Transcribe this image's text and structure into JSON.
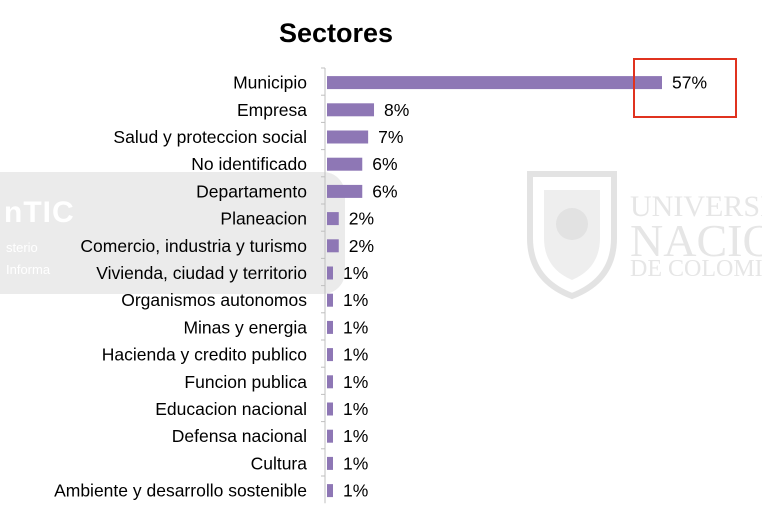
{
  "colors": {
    "bar": "#8e77b5",
    "axis": "#bfbfbf",
    "highlight": "#e0321f",
    "watermark_left": "#ebebeb",
    "watermark_right": "#e6e6e6"
  },
  "watermark_left": {
    "title": "nTIC",
    "line1": "sterio",
    "line2": "Informa"
  },
  "watermark_right": {
    "line1": "UNIVERSID",
    "line2": "NACIO",
    "line3": "DE COLOMI"
  },
  "chart_data": {
    "type": "bar",
    "orientation": "horizontal",
    "title": "Sectores",
    "xlabel": "",
    "ylabel": "",
    "xlim": [
      0,
      57
    ],
    "grid": false,
    "legend": "none",
    "categories": [
      "Municipio",
      "Empresa",
      "Salud y proteccion social",
      "No identificado",
      "Departamento",
      "Planeacion",
      "Comercio, industria y turismo",
      "Vivienda, ciudad y territorio",
      "Organismos autonomos",
      "Minas y energia",
      "Hacienda y credito publico",
      "Funcion publica",
      "Educacion nacional",
      "Defensa nacional",
      "Cultura",
      "Ambiente y desarrollo sostenible"
    ],
    "values": [
      57,
      8,
      7,
      6,
      6,
      2,
      2,
      1,
      1,
      1,
      1,
      1,
      1,
      1,
      1,
      1
    ],
    "value_labels": [
      "57%",
      "8%",
      "7%",
      "6%",
      "6%",
      "2%",
      "2%",
      "1%",
      "1%",
      "1%",
      "1%",
      "1%",
      "1%",
      "1%",
      "1%",
      "1%"
    ],
    "highlighted_category": "Municipio"
  }
}
